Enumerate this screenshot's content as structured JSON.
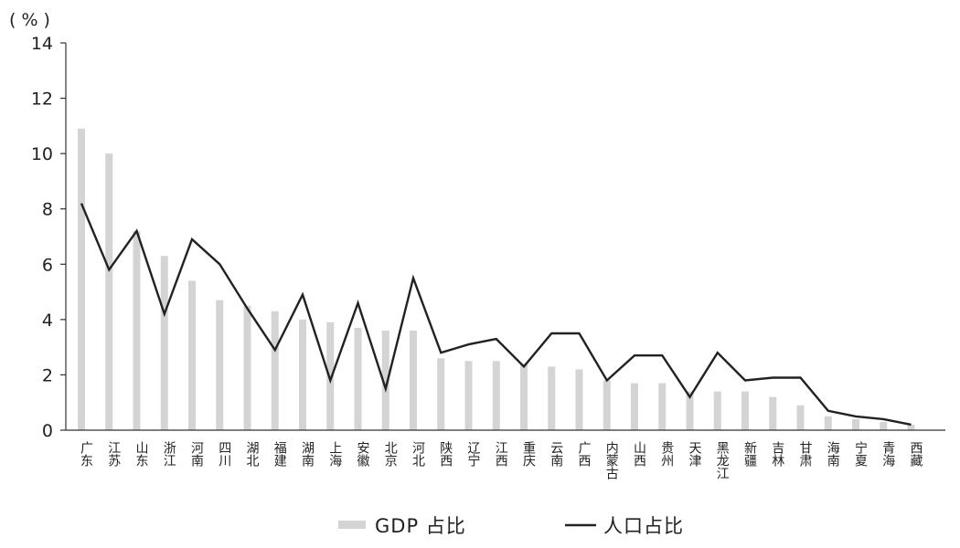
{
  "chart_data": {
    "type": "bar",
    "unit_label": "( % )",
    "ylim": [
      0,
      14
    ],
    "yticks": [
      0,
      2,
      4,
      6,
      8,
      10,
      12,
      14
    ],
    "categories": [
      "广东",
      "江苏",
      "山东",
      "浙江",
      "河南",
      "四川",
      "湖北",
      "福建",
      "湖南",
      "上海",
      "安徽",
      "北京",
      "河北",
      "陕西",
      "辽宁",
      "江西",
      "重庆",
      "云南",
      "广西",
      "内蒙古",
      "山西",
      "贵州",
      "天津",
      "黑龙江",
      "新疆",
      "吉林",
      "甘肃",
      "海南",
      "宁夏",
      "青海",
      "西藏"
    ],
    "series": [
      {
        "name": "GDP 占比",
        "kind": "bar",
        "color": "#d4d4d4",
        "values": [
          10.9,
          10.0,
          7.2,
          6.3,
          5.4,
          4.7,
          4.5,
          4.3,
          4.0,
          3.9,
          3.7,
          3.6,
          3.6,
          2.6,
          2.5,
          2.5,
          2.4,
          2.3,
          2.2,
          1.8,
          1.7,
          1.7,
          1.4,
          1.4,
          1.4,
          1.2,
          0.9,
          0.5,
          0.4,
          0.3,
          0.2
        ]
      },
      {
        "name": "人口占比",
        "kind": "line",
        "color": "#222222",
        "values": [
          8.2,
          5.8,
          7.2,
          4.2,
          6.9,
          6.0,
          4.4,
          2.9,
          4.9,
          1.8,
          4.6,
          1.5,
          5.5,
          2.8,
          3.1,
          3.3,
          2.3,
          3.5,
          3.5,
          1.8,
          2.7,
          2.7,
          1.2,
          2.8,
          1.8,
          1.9,
          1.9,
          0.7,
          0.5,
          0.4,
          0.2
        ]
      }
    ],
    "legend_position": "bottom",
    "grid": false
  }
}
